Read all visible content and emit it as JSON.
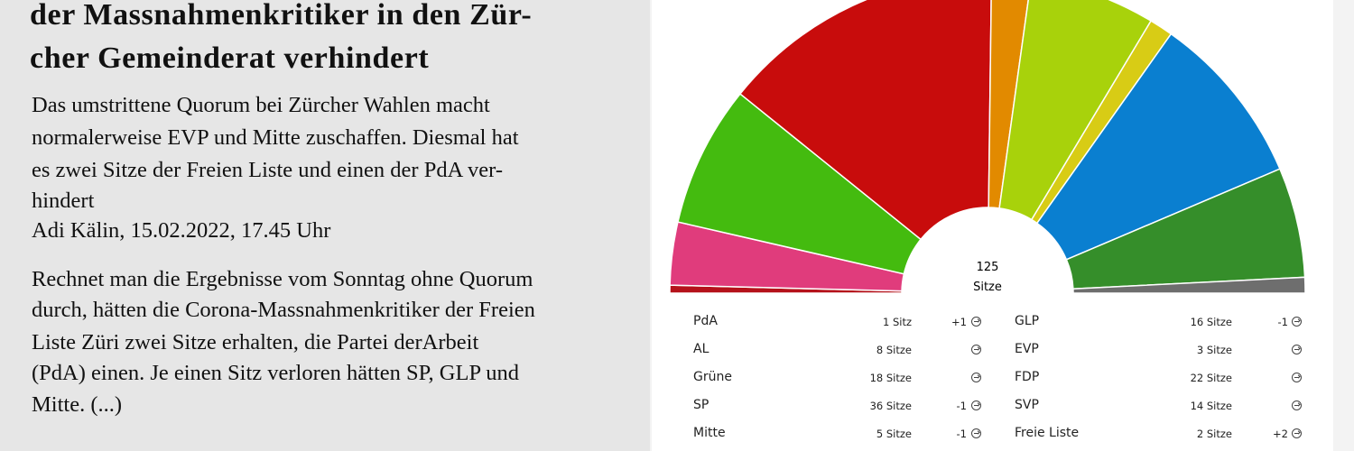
{
  "article": {
    "headline_lines": [
      "der Massnahmenkritiker in den Zür-",
      "cher Gemeinderat verhindert"
    ],
    "lead_lines": [
      "Das umstrittene Quorum bei Zürcher Wahlen macht",
      "normalerweise EVP und Mitte zuschaffen. Diesmal hat",
      "es zwei Sitze der Freien Liste und einen der PdA ver-",
      "hindert"
    ],
    "byline": "Adi Kälin, 15.02.2022, 17.45 Uhr",
    "body_lines": [
      "Rechnet man die Ergebnisse vom Sonntag ohne Quorum",
      "durch, hätten die Corona-Massnahmenkritiker der Freien",
      "Liste Züri zwei Sitze erhalten, die Partei derArbeit",
      "(PdA) einen. Je einen Sitz verloren hätten SP, GLP und",
      "Mitte. (...)"
    ]
  },
  "chart_data": {
    "type": "pie",
    "subtype": "parliament-hemicycle",
    "total": "125",
    "total_label": "Sitze",
    "series": [
      {
        "name": "PdA",
        "seats": 1,
        "seats_label": "1 Sitz",
        "change": "+1",
        "color": "#b5121b"
      },
      {
        "name": "AL",
        "seats": 8,
        "seats_label": "8 Sitze",
        "change": "",
        "color": "#e03c7c"
      },
      {
        "name": "Grüne",
        "seats": 18,
        "seats_label": "18 Sitze",
        "change": "",
        "color": "#44bb0f"
      },
      {
        "name": "SP",
        "seats": 36,
        "seats_label": "36 Sitze",
        "change": "-1",
        "color": "#c80c0c"
      },
      {
        "name": "Mitte",
        "seats": 5,
        "seats_label": "5 Sitze",
        "change": "-1",
        "color": "#e28a00"
      },
      {
        "name": "GLP",
        "seats": 16,
        "seats_label": "16 Sitze",
        "change": "-1",
        "color": "#a8d20b"
      },
      {
        "name": "EVP",
        "seats": 3,
        "seats_label": "3 Sitze",
        "change": "",
        "color": "#d8cc15"
      },
      {
        "name": "FDP",
        "seats": 22,
        "seats_label": "22 Sitze",
        "change": "",
        "color": "#0a7fd0"
      },
      {
        "name": "SVP",
        "seats": 14,
        "seats_label": "14 Sitze",
        "change": "",
        "color": "#358e2a"
      },
      {
        "name": "Freie Liste",
        "seats": 2,
        "seats_label": "2 Sitze",
        "change": "+2",
        "color": "#6e6e6e"
      }
    ],
    "legend_position": "bottom"
  }
}
